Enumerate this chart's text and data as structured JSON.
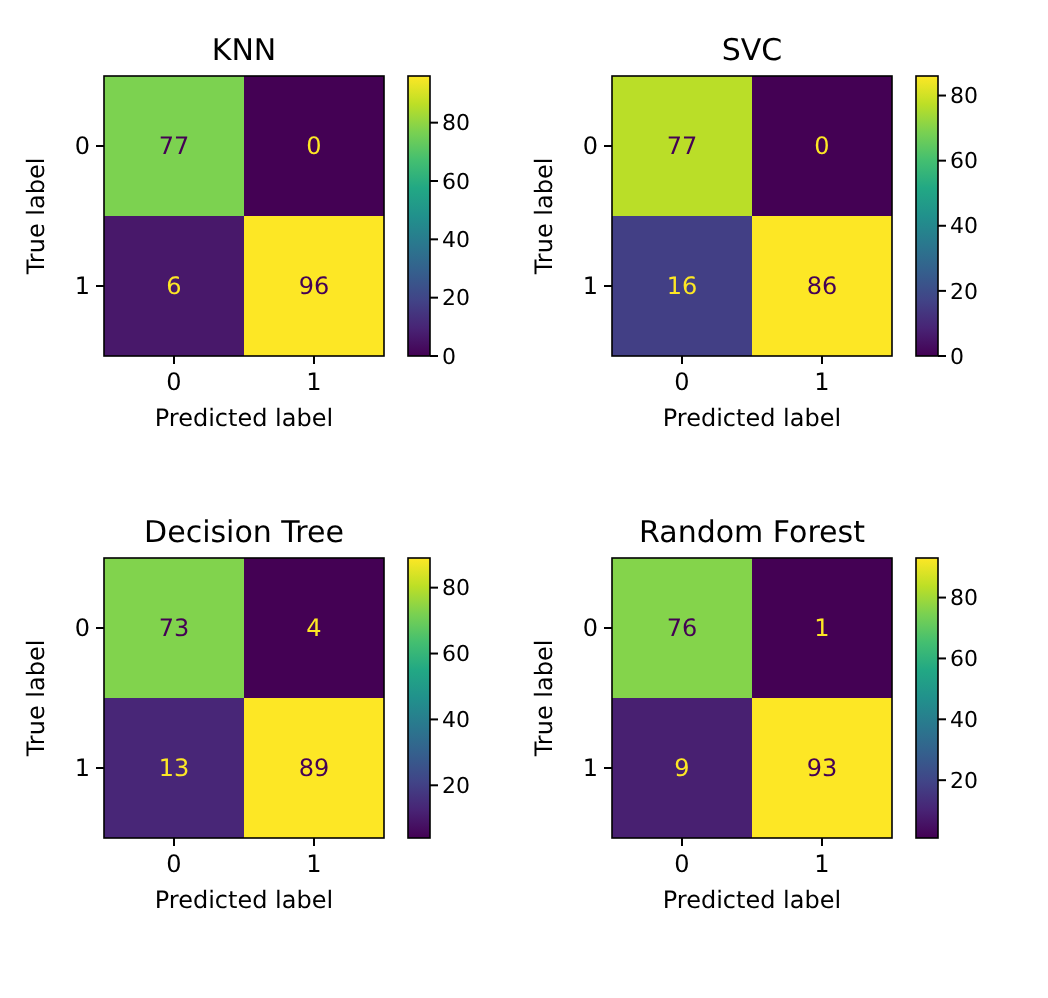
{
  "chart_data": [
    {
      "type": "heatmap",
      "title": "KNN",
      "xlabel": "Predicted label",
      "ylabel": "True label",
      "categories": [
        "0",
        "1"
      ],
      "y_categories": [
        "0",
        "1"
      ],
      "cells": [
        [
          77,
          0
        ],
        [
          6,
          96
        ]
      ],
      "data_labels": true,
      "clim": [
        0,
        96
      ],
      "cticks": [
        0,
        20,
        40,
        60,
        80
      ]
    },
    {
      "type": "heatmap",
      "title": "SVC",
      "xlabel": "Predicted label",
      "ylabel": "True label",
      "categories": [
        "0",
        "1"
      ],
      "y_categories": [
        "0",
        "1"
      ],
      "cells": [
        [
          77,
          0
        ],
        [
          16,
          86
        ]
      ],
      "data_labels": true,
      "clim": [
        0,
        86
      ],
      "cticks": [
        0,
        20,
        40,
        60,
        80
      ]
    },
    {
      "type": "heatmap",
      "title": "Decision Tree",
      "xlabel": "Predicted label",
      "ylabel": "True label",
      "categories": [
        "0",
        "1"
      ],
      "y_categories": [
        "0",
        "1"
      ],
      "cells": [
        [
          73,
          4
        ],
        [
          13,
          89
        ]
      ],
      "data_labels": true,
      "clim": [
        4,
        89
      ],
      "cticks": [
        20,
        40,
        60,
        80
      ]
    },
    {
      "type": "heatmap",
      "title": "Random Forest",
      "xlabel": "Predicted label",
      "ylabel": "True label",
      "categories": [
        "0",
        "1"
      ],
      "y_categories": [
        "0",
        "1"
      ],
      "cells": [
        [
          76,
          1
        ],
        [
          9,
          93
        ]
      ],
      "data_labels": true,
      "clim": [
        1,
        93
      ],
      "cticks": [
        20,
        40,
        60,
        80
      ]
    }
  ]
}
